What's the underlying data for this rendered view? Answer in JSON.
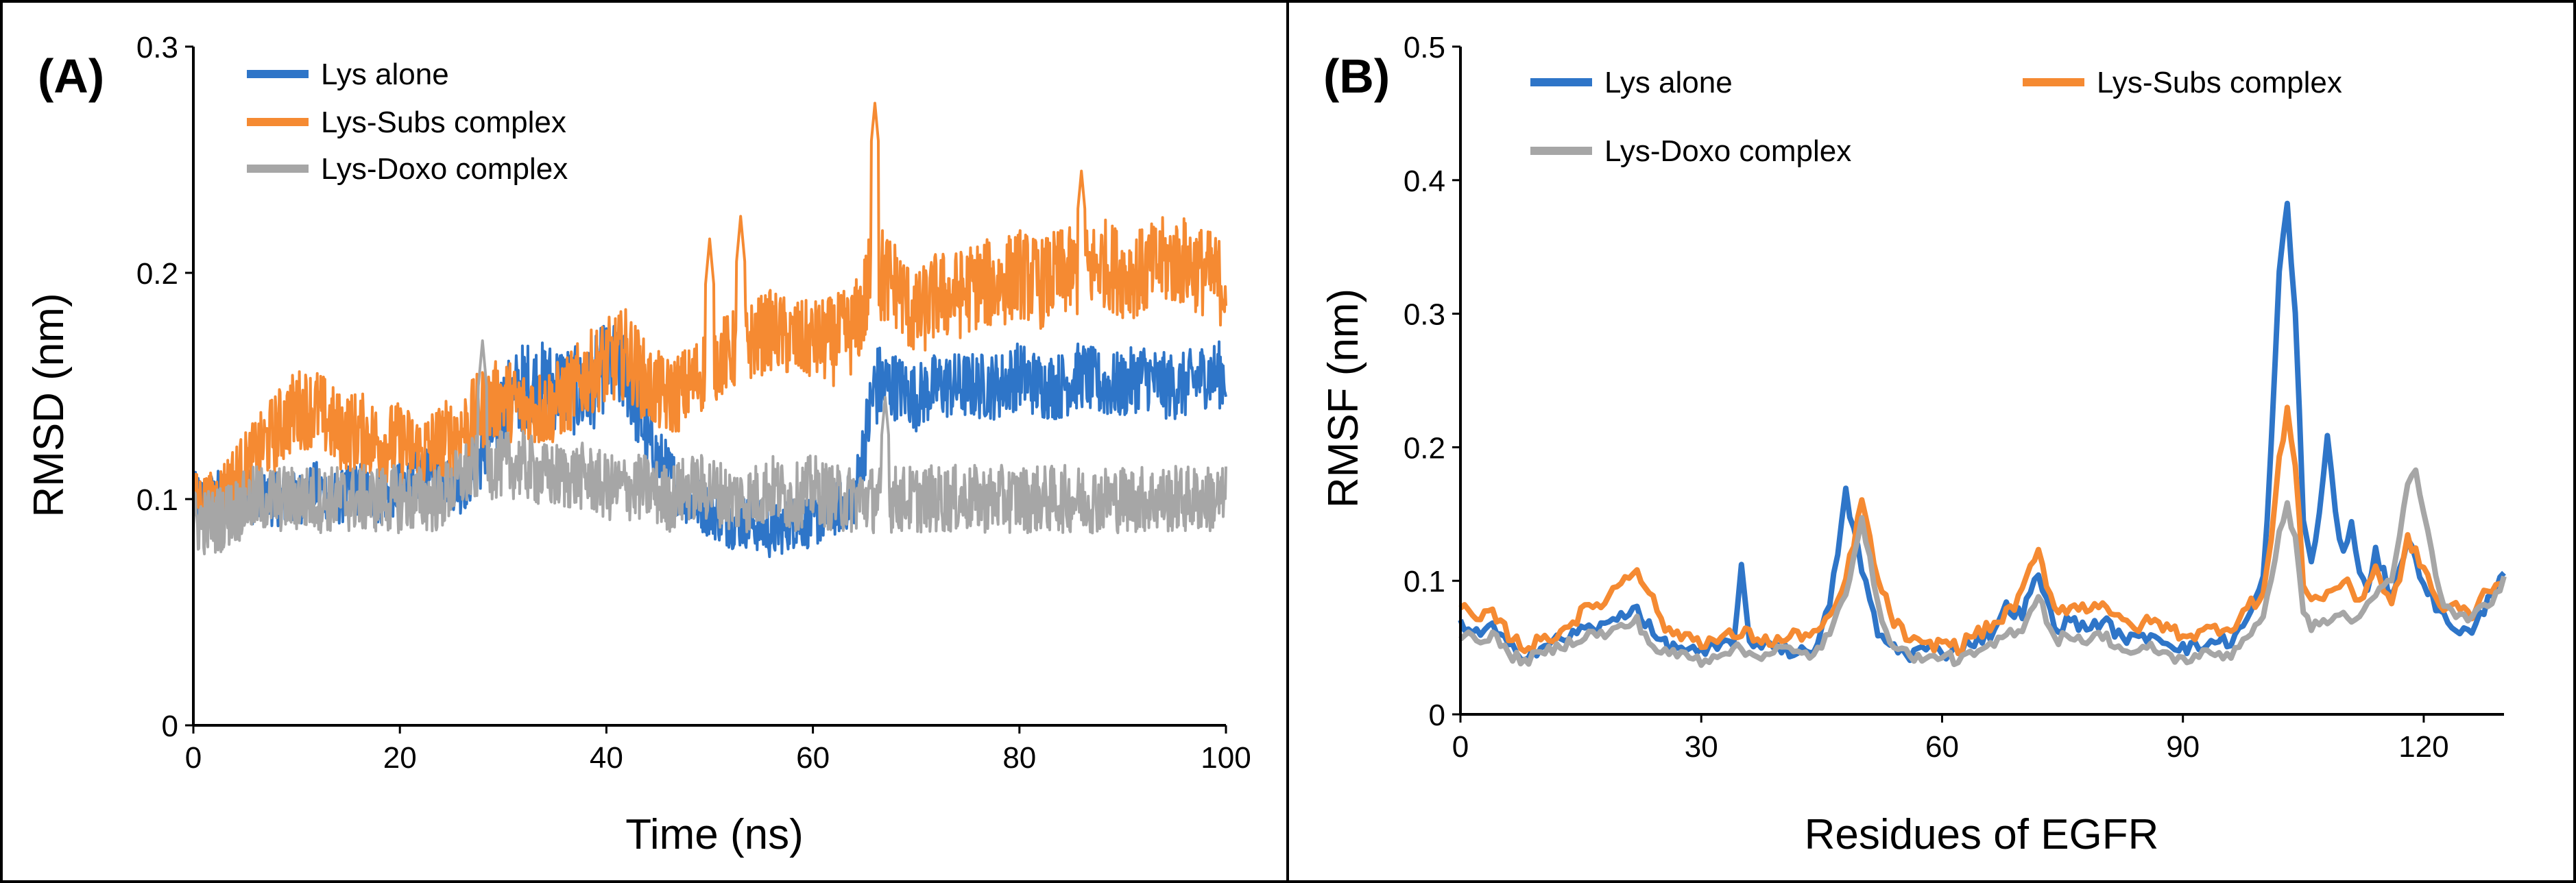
{
  "chart_data": [
    {
      "id": "panelA",
      "type": "line",
      "panel_label": "(A)",
      "title": "",
      "xlabel": "Time (ns)",
      "ylabel": "RMSD (nm)",
      "xlim": [
        0,
        100
      ],
      "ylim": [
        0,
        0.3
      ],
      "xticks": [
        0,
        20,
        40,
        60,
        80,
        100
      ],
      "yticks": [
        0,
        0.1,
        0.2,
        0.3
      ],
      "xtick_labels": [
        "0",
        "20",
        "40",
        "60",
        "80",
        "100"
      ],
      "ytick_labels": [
        "0",
        "0.1",
        "0.2",
        "0.3"
      ],
      "grid": false,
      "legend_position": "top-left",
      "series": [
        {
          "name": "Lys alone",
          "color": "#2E75C8",
          "x": [
            0,
            2,
            4,
            6,
            8,
            10,
            12,
            14,
            16,
            18,
            20,
            22,
            24,
            26,
            28,
            30,
            32,
            34,
            36,
            38,
            40,
            42,
            44,
            46,
            48,
            50,
            52,
            54,
            56,
            58,
            60,
            62,
            64,
            66,
            68,
            70,
            72,
            74,
            76,
            78,
            80,
            82,
            84,
            86,
            88,
            90,
            92,
            94,
            96,
            98,
            100
          ],
          "y": [
            0.1,
            0.1,
            0.105,
            0.1,
            0.1,
            0.1,
            0.105,
            0.1,
            0.105,
            0.1,
            0.105,
            0.11,
            0.11,
            0.105,
            0.12,
            0.14,
            0.15,
            0.15,
            0.15,
            0.145,
            0.16,
            0.155,
            0.125,
            0.11,
            0.1,
            0.095,
            0.09,
            0.09,
            0.085,
            0.09,
            0.09,
            0.095,
            0.1,
            0.15,
            0.15,
            0.145,
            0.15,
            0.15,
            0.15,
            0.15,
            0.155,
            0.15,
            0.15,
            0.155,
            0.15,
            0.15,
            0.155,
            0.15,
            0.15,
            0.155,
            0.155
          ],
          "amp": [
            0.012,
            0.012,
            0.012,
            0.012,
            0.012,
            0.012,
            0.012,
            0.012,
            0.012,
            0.012,
            0.012,
            0.012,
            0.012,
            0.012,
            0.015,
            0.02,
            0.02,
            0.02,
            0.02,
            0.02,
            0.02,
            0.02,
            0.015,
            0.015,
            0.012,
            0.012,
            0.012,
            0.012,
            0.012,
            0.012,
            0.012,
            0.012,
            0.012,
            0.02,
            0.015,
            0.015,
            0.015,
            0.015,
            0.015,
            0.015,
            0.015,
            0.015,
            0.015,
            0.015,
            0.015,
            0.015,
            0.015,
            0.015,
            0.015,
            0.015,
            0.015
          ]
        },
        {
          "name": "Lys-Subs complex",
          "color": "#F58A32",
          "x": [
            0,
            2,
            4,
            6,
            8,
            10,
            12,
            14,
            16,
            18,
            20,
            22,
            24,
            26,
            28,
            30,
            32,
            34,
            36,
            38,
            40,
            42,
            44,
            46,
            48,
            50,
            52,
            54,
            56,
            58,
            60,
            62,
            64,
            66,
            68,
            70,
            72,
            74,
            76,
            78,
            80,
            82,
            84,
            86,
            88,
            90,
            92,
            94,
            96,
            98,
            100
          ],
          "y": [
            0.1,
            0.1,
            0.11,
            0.12,
            0.13,
            0.14,
            0.14,
            0.13,
            0.13,
            0.125,
            0.125,
            0.12,
            0.125,
            0.13,
            0.14,
            0.145,
            0.14,
            0.14,
            0.145,
            0.155,
            0.16,
            0.165,
            0.15,
            0.145,
            0.15,
            0.16,
            0.165,
            0.17,
            0.175,
            0.17,
            0.17,
            0.17,
            0.175,
            0.2,
            0.195,
            0.18,
            0.19,
            0.19,
            0.195,
            0.195,
            0.2,
            0.195,
            0.2,
            0.2,
            0.205,
            0.2,
            0.2,
            0.205,
            0.205,
            0.2,
            0.195
          ],
          "amp": [
            0.012,
            0.012,
            0.015,
            0.015,
            0.018,
            0.018,
            0.018,
            0.018,
            0.018,
            0.018,
            0.018,
            0.018,
            0.018,
            0.018,
            0.018,
            0.018,
            0.018,
            0.018,
            0.018,
            0.018,
            0.02,
            0.02,
            0.018,
            0.018,
            0.018,
            0.018,
            0.018,
            0.018,
            0.018,
            0.018,
            0.018,
            0.02,
            0.02,
            0.025,
            0.02,
            0.02,
            0.02,
            0.02,
            0.02,
            0.02,
            0.02,
            0.02,
            0.02,
            0.02,
            0.02,
            0.02,
            0.02,
            0.02,
            0.02,
            0.02,
            0.02
          ],
          "spikes": [
            [
              50,
              0.215
            ],
            [
              53,
              0.225
            ],
            [
              66,
              0.275
            ],
            [
              86,
              0.245
            ]
          ]
        },
        {
          "name": "Lys-Doxo complex",
          "color": "#A6A6A6",
          "x": [
            0,
            2,
            4,
            6,
            8,
            10,
            12,
            14,
            16,
            18,
            20,
            22,
            24,
            26,
            28,
            30,
            32,
            34,
            36,
            38,
            40,
            42,
            44,
            46,
            48,
            50,
            52,
            54,
            56,
            58,
            60,
            62,
            64,
            66,
            68,
            70,
            72,
            74,
            76,
            78,
            80,
            82,
            84,
            86,
            88,
            90,
            92,
            94,
            96,
            98,
            100
          ],
          "y": [
            0.09,
            0.09,
            0.095,
            0.1,
            0.1,
            0.1,
            0.1,
            0.1,
            0.1,
            0.1,
            0.1,
            0.1,
            0.1,
            0.11,
            0.115,
            0.115,
            0.115,
            0.11,
            0.11,
            0.11,
            0.105,
            0.105,
            0.105,
            0.1,
            0.105,
            0.105,
            0.1,
            0.1,
            0.105,
            0.1,
            0.105,
            0.1,
            0.1,
            0.1,
            0.1,
            0.1,
            0.1,
            0.1,
            0.1,
            0.1,
            0.1,
            0.1,
            0.1,
            0.1,
            0.1,
            0.1,
            0.1,
            0.1,
            0.1,
            0.1,
            0.1
          ],
          "amp": [
            0.015,
            0.015,
            0.015,
            0.015,
            0.015,
            0.015,
            0.015,
            0.015,
            0.015,
            0.015,
            0.015,
            0.015,
            0.015,
            0.015,
            0.015,
            0.015,
            0.015,
            0.015,
            0.015,
            0.015,
            0.015,
            0.015,
            0.015,
            0.015,
            0.015,
            0.015,
            0.015,
            0.015,
            0.015,
            0.015,
            0.015,
            0.015,
            0.015,
            0.015,
            0.015,
            0.015,
            0.015,
            0.015,
            0.015,
            0.015,
            0.015,
            0.015,
            0.015,
            0.015,
            0.015,
            0.015,
            0.015,
            0.015,
            0.015,
            0.015,
            0.015
          ],
          "spikes": [
            [
              28,
              0.17
            ],
            [
              67,
              0.145
            ]
          ]
        }
      ]
    },
    {
      "id": "panelB",
      "type": "line",
      "panel_label": "(B)",
      "title": "",
      "xlabel": "Residues of EGFR",
      "ylabel": "RMSF (nm)",
      "xlim": [
        0,
        130
      ],
      "ylim": [
        0,
        0.5
      ],
      "xticks": [
        0,
        30,
        60,
        90,
        120
      ],
      "yticks": [
        0,
        0.1,
        0.2,
        0.3,
        0.4,
        0.5
      ],
      "xtick_labels": [
        "0",
        "30",
        "60",
        "90",
        "120"
      ],
      "ytick_labels": [
        "0",
        "0.1",
        "0.2",
        "0.3",
        "0.4",
        "0.5"
      ],
      "grid": false,
      "legend_position": "top",
      "series": [
        {
          "name": "Lys alone",
          "color": "#2E75C8",
          "x": [
            0,
            2,
            4,
            6,
            8,
            10,
            12,
            14,
            16,
            18,
            20,
            22,
            24,
            26,
            28,
            30,
            32,
            34,
            35,
            36,
            38,
            40,
            42,
            44,
            46,
            48,
            50,
            52,
            54,
            56,
            58,
            60,
            62,
            64,
            66,
            68,
            70,
            72,
            74,
            76,
            78,
            80,
            82,
            84,
            86,
            88,
            90,
            92,
            94,
            96,
            98,
            100,
            101,
            102,
            103,
            104,
            105,
            106,
            107,
            108,
            109,
            110,
            111,
            112,
            113,
            114,
            116,
            118,
            120,
            122,
            124,
            126,
            128,
            130
          ],
          "y": [
            0.07,
            0.06,
            0.065,
            0.05,
            0.045,
            0.05,
            0.055,
            0.06,
            0.065,
            0.065,
            0.075,
            0.08,
            0.06,
            0.05,
            0.05,
            0.045,
            0.05,
            0.055,
            0.11,
            0.05,
            0.055,
            0.05,
            0.045,
            0.05,
            0.08,
            0.165,
            0.11,
            0.06,
            0.05,
            0.045,
            0.05,
            0.045,
            0.05,
            0.055,
            0.06,
            0.08,
            0.075,
            0.105,
            0.065,
            0.07,
            0.065,
            0.07,
            0.06,
            0.055,
            0.06,
            0.055,
            0.05,
            0.05,
            0.055,
            0.055,
            0.07,
            0.1,
            0.2,
            0.33,
            0.38,
            0.3,
            0.15,
            0.11,
            0.15,
            0.21,
            0.15,
            0.12,
            0.14,
            0.11,
            0.09,
            0.12,
            0.09,
            0.13,
            0.1,
            0.075,
            0.065,
            0.06,
            0.085,
            0.11
          ],
          "noise": 0.005
        },
        {
          "name": "Lys-Subs complex",
          "color": "#F58A32",
          "x": [
            0,
            2,
            4,
            6,
            8,
            10,
            12,
            14,
            16,
            18,
            20,
            22,
            24,
            26,
            28,
            30,
            32,
            34,
            36,
            38,
            40,
            42,
            44,
            46,
            48,
            50,
            52,
            54,
            56,
            58,
            60,
            62,
            64,
            66,
            68,
            70,
            71,
            72,
            74,
            76,
            78,
            80,
            82,
            84,
            86,
            88,
            90,
            92,
            94,
            96,
            98,
            100,
            101,
            102,
            103,
            104,
            105,
            106,
            108,
            110,
            112,
            114,
            116,
            118,
            120,
            122,
            124,
            126,
            128,
            130
          ],
          "y": [
            0.08,
            0.07,
            0.075,
            0.06,
            0.05,
            0.055,
            0.06,
            0.07,
            0.08,
            0.085,
            0.1,
            0.11,
            0.085,
            0.06,
            0.06,
            0.055,
            0.055,
            0.06,
            0.06,
            0.055,
            0.055,
            0.06,
            0.06,
            0.07,
            0.1,
            0.16,
            0.1,
            0.07,
            0.055,
            0.05,
            0.055,
            0.05,
            0.06,
            0.065,
            0.075,
            0.09,
            0.11,
            0.12,
            0.08,
            0.08,
            0.08,
            0.085,
            0.07,
            0.065,
            0.07,
            0.065,
            0.06,
            0.06,
            0.065,
            0.065,
            0.08,
            0.09,
            0.13,
            0.19,
            0.225,
            0.19,
            0.1,
            0.085,
            0.09,
            0.1,
            0.085,
            0.11,
            0.08,
            0.13,
            0.11,
            0.08,
            0.08,
            0.075,
            0.095,
            0.1
          ],
          "noise": 0.005
        },
        {
          "name": "Lys-Doxo complex",
          "color": "#A6A6A6",
          "x": [
            0,
            2,
            4,
            6,
            8,
            10,
            12,
            14,
            16,
            18,
            20,
            22,
            24,
            26,
            28,
            30,
            32,
            34,
            36,
            38,
            40,
            42,
            44,
            46,
            48,
            50,
            52,
            54,
            56,
            58,
            60,
            62,
            64,
            66,
            68,
            70,
            72,
            74,
            76,
            78,
            80,
            82,
            84,
            86,
            88,
            90,
            92,
            94,
            96,
            98,
            100,
            101,
            102,
            103,
            104,
            105,
            106,
            108,
            110,
            112,
            114,
            116,
            118,
            119,
            120,
            122,
            124,
            126,
            128,
            130
          ],
          "y": [
            0.06,
            0.055,
            0.06,
            0.045,
            0.04,
            0.045,
            0.05,
            0.055,
            0.06,
            0.06,
            0.065,
            0.07,
            0.05,
            0.045,
            0.045,
            0.04,
            0.045,
            0.05,
            0.045,
            0.045,
            0.05,
            0.045,
            0.045,
            0.06,
            0.09,
            0.15,
            0.08,
            0.05,
            0.045,
            0.04,
            0.045,
            0.04,
            0.045,
            0.05,
            0.06,
            0.065,
            0.09,
            0.055,
            0.06,
            0.055,
            0.06,
            0.05,
            0.045,
            0.05,
            0.045,
            0.04,
            0.045,
            0.045,
            0.045,
            0.06,
            0.07,
            0.1,
            0.14,
            0.155,
            0.13,
            0.08,
            0.065,
            0.07,
            0.075,
            0.07,
            0.09,
            0.1,
            0.17,
            0.185,
            0.15,
            0.09,
            0.07,
            0.075,
            0.08,
            0.1
          ],
          "noise": 0.004
        }
      ]
    }
  ]
}
